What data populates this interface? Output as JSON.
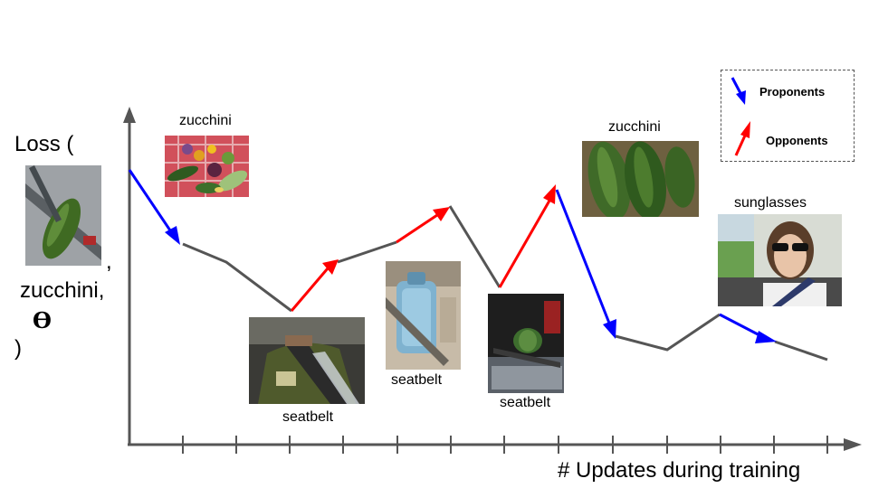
{
  "axes": {
    "y_label_prefix": "Loss (",
    "y_label_comma1": ",",
    "y_label_word": "zucchini,",
    "y_label_theta": "ϴ",
    "y_label_close": ")",
    "x_label": "# Updates during training"
  },
  "legend": {
    "proponents": "Proponents",
    "opponents": "Opponents"
  },
  "image_labels": {
    "zucchini_1": "zucchini",
    "seatbelt_1": "seatbelt",
    "seatbelt_2": "seatbelt",
    "seatbelt_3": "seatbelt",
    "zucchini_2": "zucchini",
    "sunglasses": "sunglasses"
  },
  "colors": {
    "proponent": "#0000ff",
    "opponent": "#ff0000",
    "curve": "#555555",
    "axis": "#555555"
  },
  "icons": [
    "test-image-zucchini-seatbelt",
    "zucchini-pile-photo",
    "seatbelt-man-photo",
    "water-jug-seatbelt-photo",
    "watermelon-seatbelt-photo",
    "cucumbers-photo",
    "woman-sunglasses-car-photo"
  ]
}
